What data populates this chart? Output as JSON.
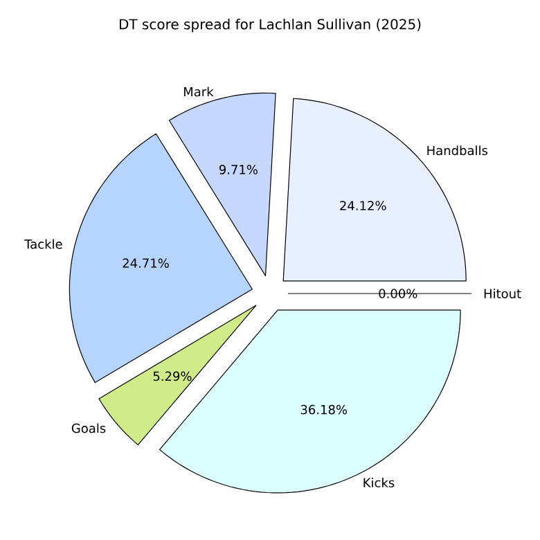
{
  "chart_data": {
    "type": "pie",
    "title": "DT score spread for Lachlan Sullivan (2025)",
    "categories": [
      "Handballs",
      "Mark",
      "Tackle",
      "Goals",
      "Kicks",
      "Hitout"
    ],
    "values": [
      24.12,
      9.71,
      24.71,
      5.29,
      36.18,
      0.0
    ],
    "value_labels": [
      "24.12%",
      "9.71%",
      "24.71%",
      "5.29%",
      "36.18%",
      "0.00%"
    ],
    "colors": [
      "#e8f0ff",
      "#c6d8ff",
      "#b5d5ff",
      "#d0eb8a",
      "#dcffff",
      "#f0f0ff"
    ]
  }
}
